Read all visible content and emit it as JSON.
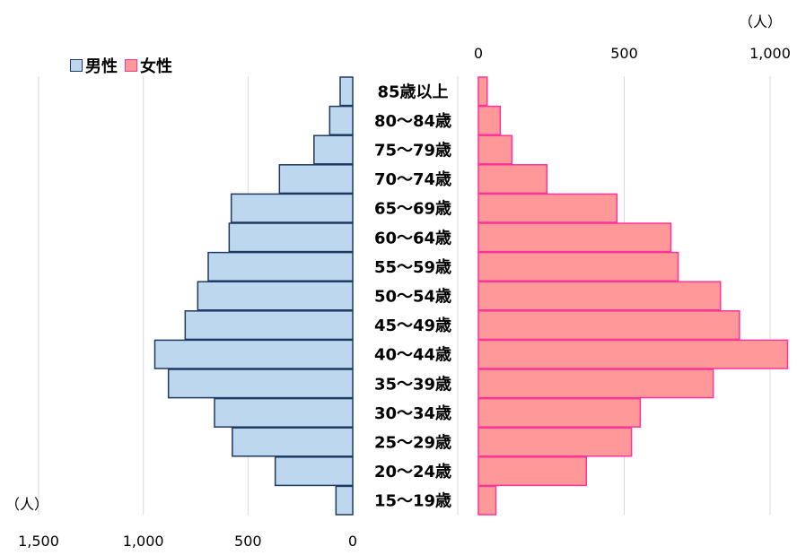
{
  "chart_data": {
    "type": "bar",
    "categories": [
      "85歳以上",
      "80〜84歳",
      "75〜79歳",
      "70〜74歳",
      "65〜69歳",
      "60〜64歳",
      "55〜59歳",
      "50〜54歳",
      "45〜49歳",
      "40〜44歳",
      "35〜39歳",
      "30〜34歳",
      "25〜29歳",
      "20〜24歳",
      "15〜19歳"
    ],
    "series": [
      {
        "name": "男性",
        "color": "#bdd7ee",
        "stroke": "#1f3864",
        "values": [
          60,
          110,
          185,
          350,
          580,
          590,
          690,
          740,
          800,
          945,
          880,
          660,
          575,
          370,
          80
        ]
      },
      {
        "name": "女性",
        "color": "#ff9999",
        "stroke": "#ff3399",
        "values": [
          30,
          75,
          115,
          235,
          475,
          660,
          685,
          830,
          895,
          1060,
          805,
          555,
          525,
          370,
          60
        ]
      }
    ],
    "left_axis": {
      "ticks": [
        1500,
        1000,
        500,
        0
      ],
      "tick_labels": [
        "1,500",
        "1,000",
        "500",
        "0"
      ],
      "unit": "（人）"
    },
    "right_axis": {
      "ticks": [
        0,
        500,
        1000
      ],
      "tick_labels": [
        "0",
        "500",
        "1,000"
      ],
      "unit": "（人）"
    },
    "grid": true,
    "legend_position": "top-left"
  }
}
